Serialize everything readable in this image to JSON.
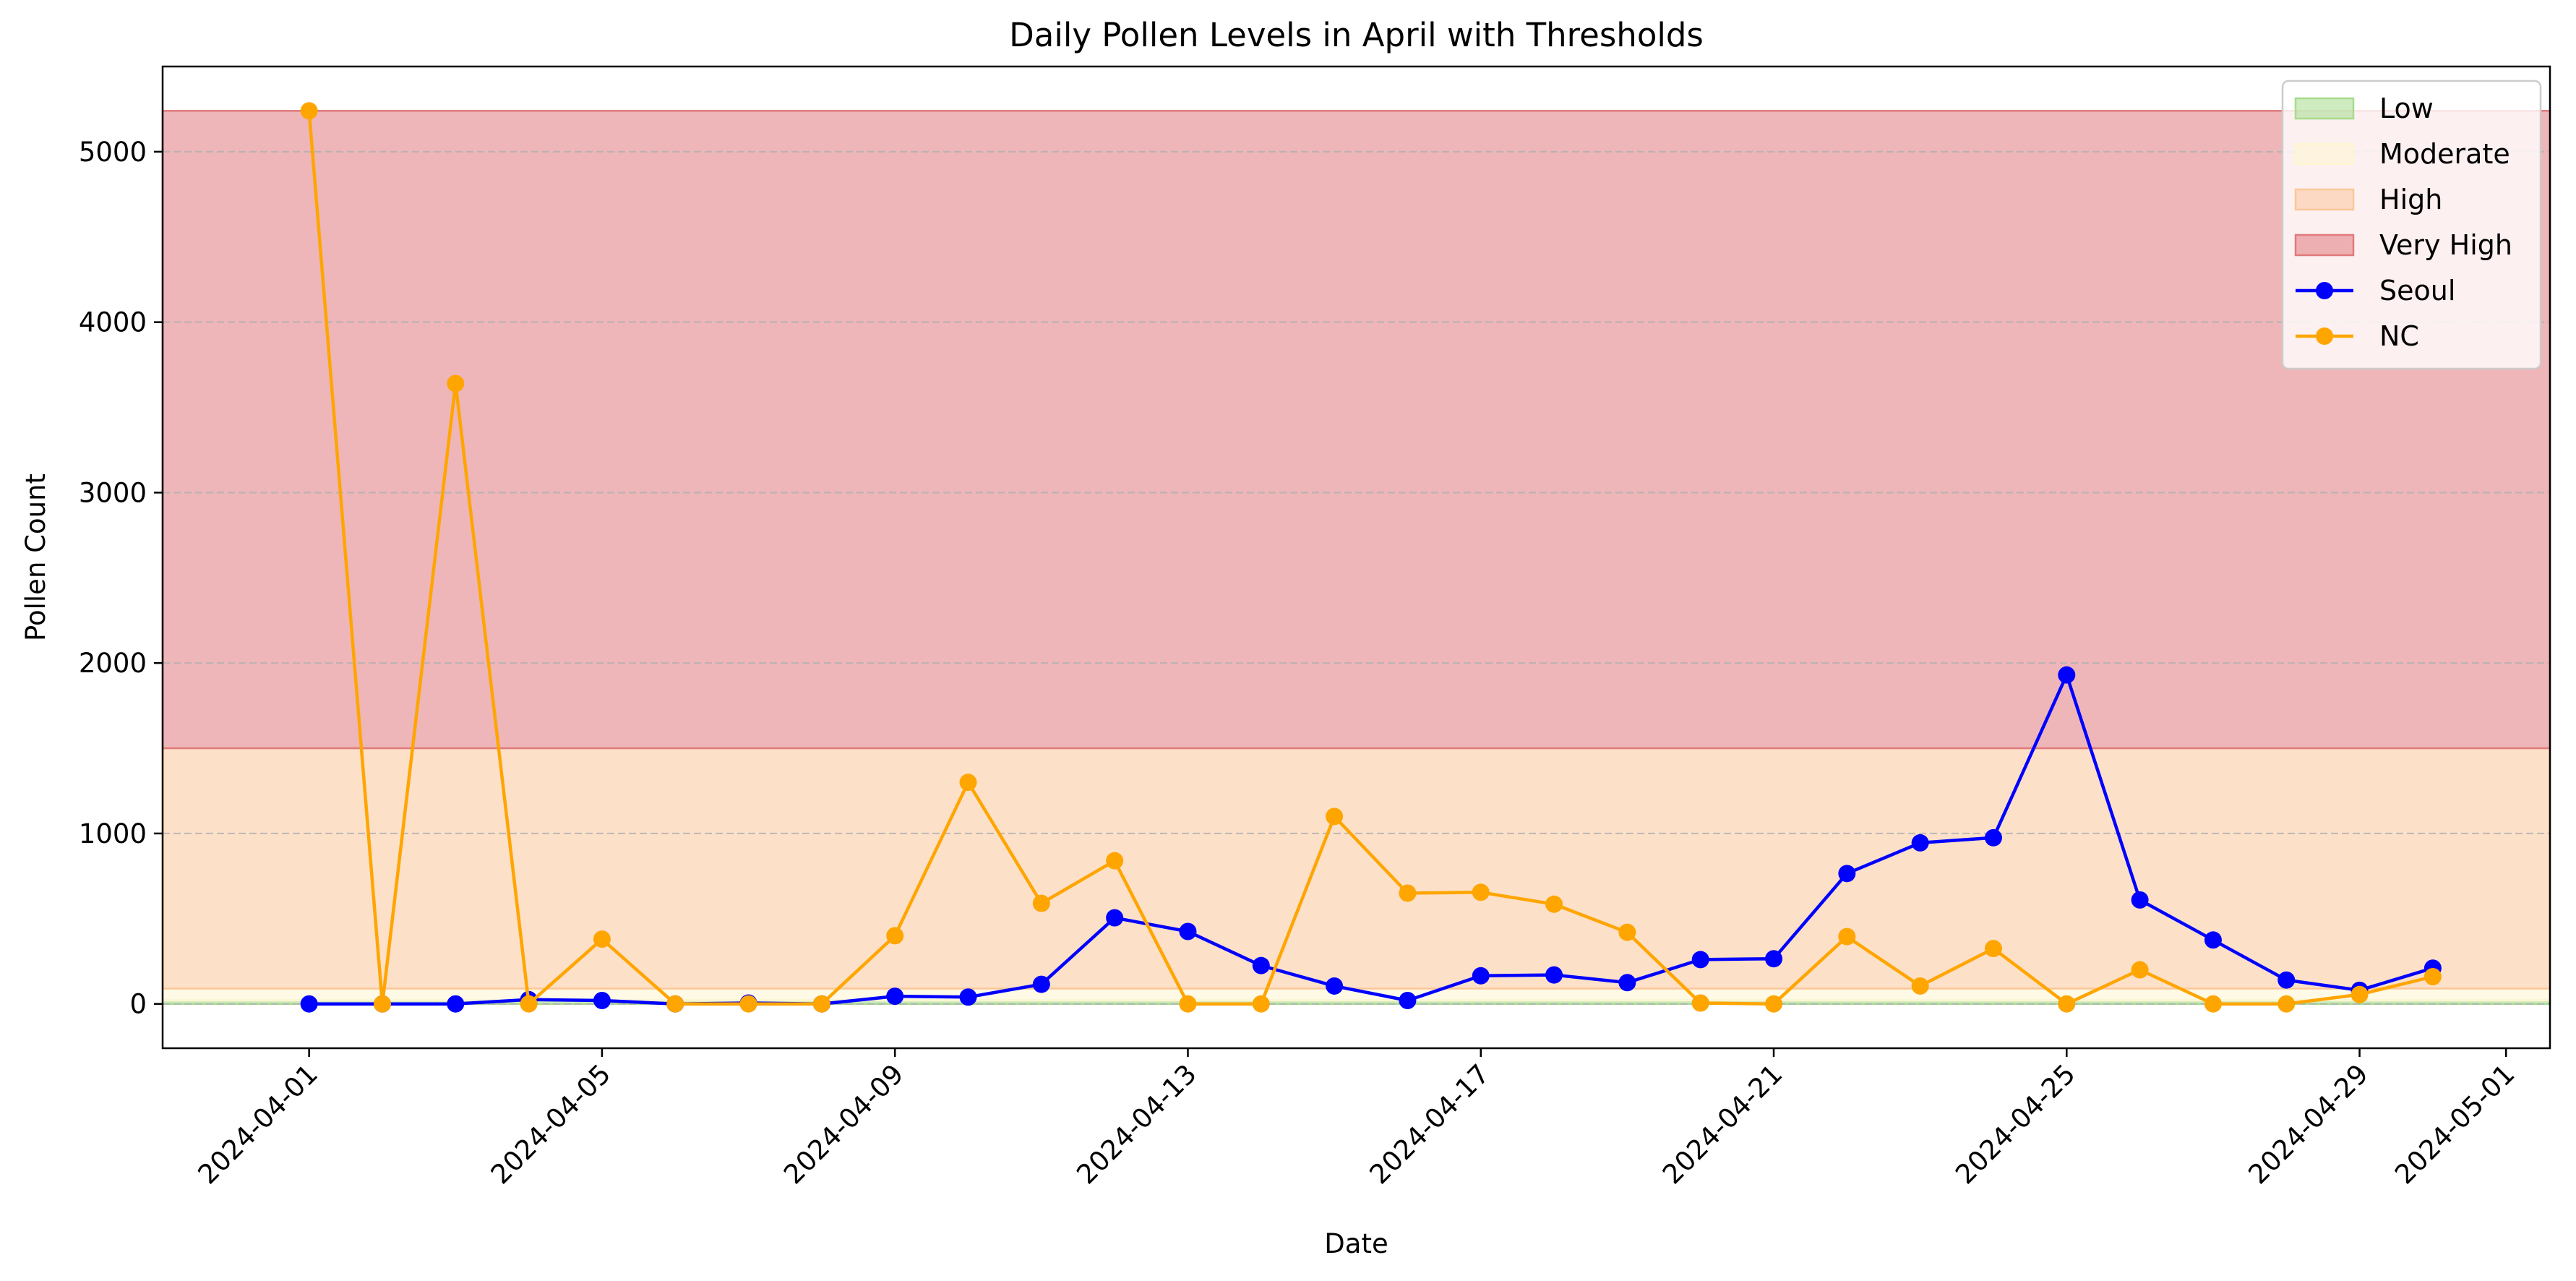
{
  "chart_data": {
    "type": "line",
    "title": "Daily Pollen Levels in April with Thresholds",
    "xlabel": "Date",
    "ylabel": "Pollen Count",
    "x_range": [
      "2024-03-30",
      "2024-05-01"
    ],
    "ylim": [
      -260,
      5500
    ],
    "y_ticks": [
      0,
      1000,
      2000,
      3000,
      4000,
      5000
    ],
    "x_ticks": [
      "2024-04-01",
      "2024-04-05",
      "2024-04-09",
      "2024-04-13",
      "2024-04-17",
      "2024-04-21",
      "2024-04-25",
      "2024-04-29",
      "2024-05-01"
    ],
    "x_tick_rotation": 45,
    "grid": "y-dashed",
    "legend_position": "top-right",
    "thresholds": [
      {
        "name": "Low",
        "from": 0,
        "to": 20,
        "color": "#a6dc8d"
      },
      {
        "name": "Moderate",
        "from": 20,
        "to": 90,
        "color": "#fdf5cf"
      },
      {
        "name": "High",
        "from": 90,
        "to": 1500,
        "color": "#fbc79a"
      },
      {
        "name": "Very High",
        "from": 1500,
        "to": 5240,
        "color": "#e07a7d"
      }
    ],
    "x": [
      "2024-04-01",
      "2024-04-02",
      "2024-04-03",
      "2024-04-04",
      "2024-04-05",
      "2024-04-06",
      "2024-04-07",
      "2024-04-08",
      "2024-04-09",
      "2024-04-10",
      "2024-04-11",
      "2024-04-12",
      "2024-04-13",
      "2024-04-14",
      "2024-04-15",
      "2024-04-16",
      "2024-04-17",
      "2024-04-18",
      "2024-04-19",
      "2024-04-20",
      "2024-04-21",
      "2024-04-22",
      "2024-04-23",
      "2024-04-24",
      "2024-04-25",
      "2024-04-26",
      "2024-04-27",
      "2024-04-28",
      "2024-04-29",
      "2024-04-30"
    ],
    "series": [
      {
        "name": "Seoul",
        "color": "#0000ff",
        "values": [
          0,
          0,
          0,
          25,
          20,
          0,
          5,
          0,
          45,
          40,
          115,
          505,
          425,
          225,
          105,
          20,
          165,
          170,
          125,
          260,
          265,
          765,
          945,
          975,
          1930,
          610,
          375,
          140,
          80,
          210
        ]
      },
      {
        "name": "NC",
        "color": "#ffa500",
        "values": [
          5240,
          0,
          3640,
          0,
          380,
          0,
          0,
          0,
          400,
          1300,
          590,
          840,
          0,
          0,
          1100,
          650,
          655,
          585,
          420,
          5,
          0,
          395,
          105,
          325,
          0,
          200,
          0,
          0,
          55,
          160
        ]
      }
    ]
  }
}
